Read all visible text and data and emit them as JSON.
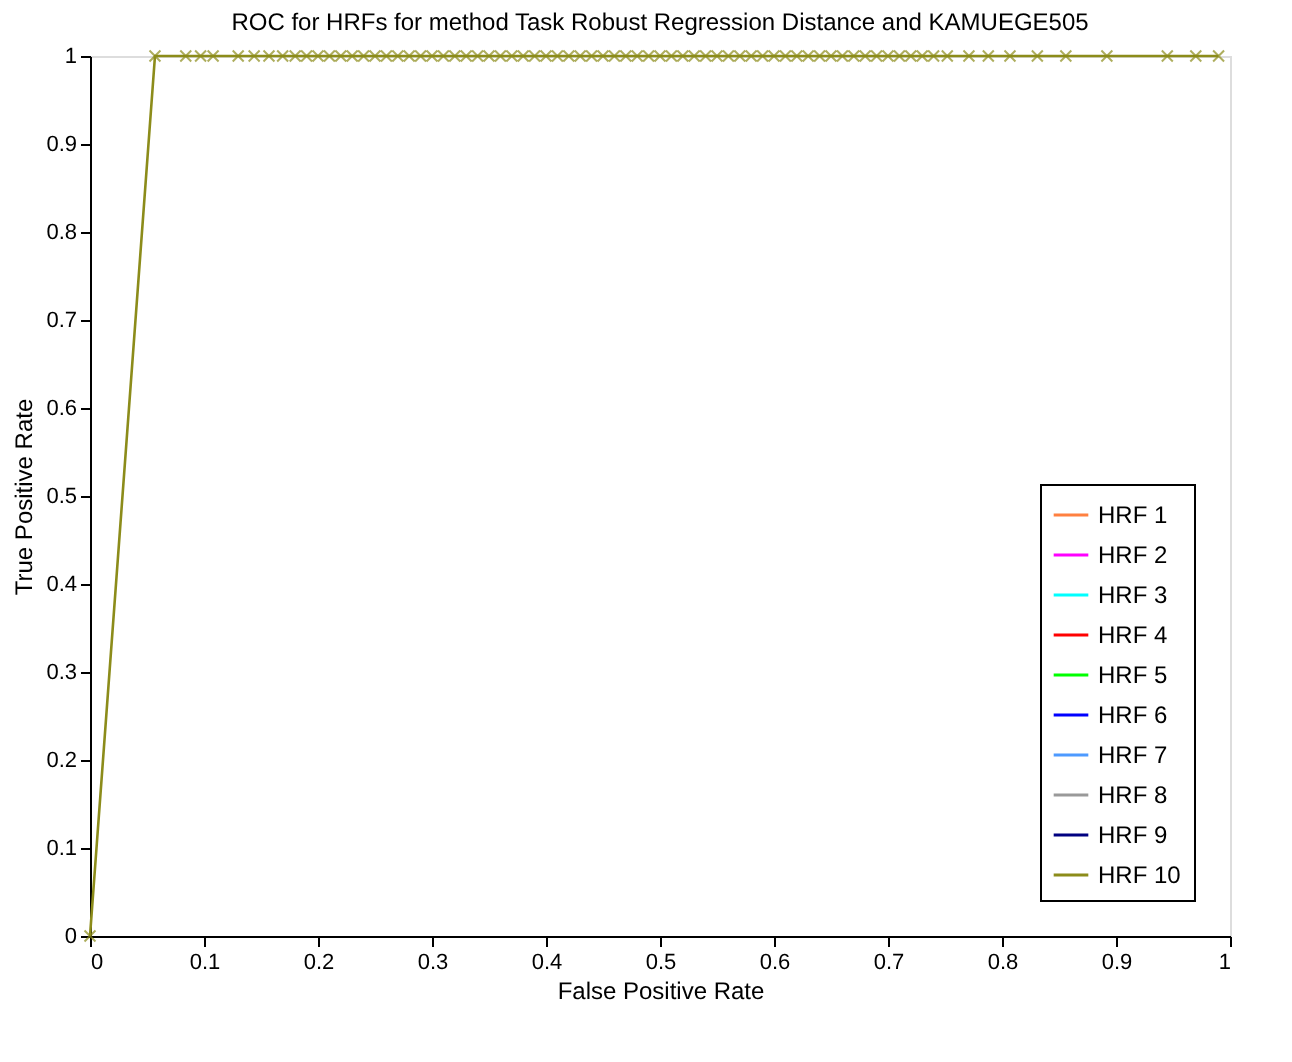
{
  "chart_data": {
    "type": "line",
    "title": "ROC for HRFs for method Task Robust Regression Distance and KAMUEGE505",
    "xlabel": "False Positive Rate",
    "ylabel": "True Positive Rate",
    "x": [
      0,
      0.057,
      0.084,
      0.097,
      0.108,
      0.13,
      0.144,
      0.157,
      0.169,
      0.18,
      0.19,
      0.2,
      0.21,
      0.22,
      0.23,
      0.24,
      0.25,
      0.26,
      0.27,
      0.28,
      0.29,
      0.3,
      0.31,
      0.32,
      0.33,
      0.34,
      0.35,
      0.36,
      0.37,
      0.38,
      0.39,
      0.4,
      0.41,
      0.42,
      0.43,
      0.44,
      0.45,
      0.46,
      0.47,
      0.48,
      0.49,
      0.5,
      0.51,
      0.52,
      0.53,
      0.54,
      0.55,
      0.56,
      0.57,
      0.58,
      0.59,
      0.6,
      0.61,
      0.62,
      0.63,
      0.64,
      0.65,
      0.66,
      0.67,
      0.68,
      0.69,
      0.7,
      0.71,
      0.72,
      0.73,
      0.74,
      0.752,
      0.771,
      0.788,
      0.807,
      0.831,
      0.856,
      0.892,
      0.945,
      0.97,
      0.99
    ],
    "series": [
      {
        "name": "HRF 1",
        "color": "#ff8040",
        "values": [
          null,
          null,
          null,
          null,
          null,
          null,
          null,
          null,
          null,
          null,
          null,
          null,
          null,
          null,
          null,
          null,
          null,
          null,
          null,
          null,
          null,
          null,
          null,
          null,
          null,
          null,
          null,
          null,
          null,
          null,
          null,
          null,
          null,
          null,
          null,
          null,
          null,
          null,
          null,
          null,
          null,
          null,
          null,
          null,
          null,
          null,
          null,
          null,
          null,
          null,
          null,
          null,
          null,
          null,
          null,
          null,
          null,
          null,
          null,
          null,
          null,
          null,
          null,
          null,
          null,
          null,
          null,
          null,
          null,
          null,
          null,
          null,
          null,
          null,
          null,
          null
        ]
      },
      {
        "name": "HRF 2",
        "color": "#ff00ff",
        "values": [
          null,
          null,
          null,
          null,
          null,
          null,
          null,
          null,
          null,
          null,
          null,
          null,
          null,
          null,
          null,
          null,
          null,
          null,
          null,
          null,
          null,
          null,
          null,
          null,
          null,
          null,
          null,
          null,
          null,
          null,
          null,
          null,
          null,
          null,
          null,
          null,
          null,
          null,
          null,
          null,
          null,
          null,
          null,
          null,
          null,
          null,
          null,
          null,
          null,
          null,
          null,
          null,
          null,
          null,
          null,
          null,
          null,
          null,
          null,
          null,
          null,
          null,
          null,
          null,
          null,
          null,
          null,
          null,
          null,
          null,
          null,
          null,
          null,
          null,
          null,
          null
        ]
      },
      {
        "name": "HRF 3",
        "color": "#00ffff",
        "values": [
          null,
          null,
          null,
          null,
          null,
          null,
          null,
          null,
          null,
          null,
          null,
          null,
          null,
          null,
          null,
          null,
          null,
          null,
          null,
          null,
          null,
          null,
          null,
          null,
          null,
          null,
          null,
          null,
          null,
          null,
          null,
          null,
          null,
          null,
          null,
          null,
          null,
          null,
          null,
          null,
          null,
          null,
          null,
          null,
          null,
          null,
          null,
          null,
          null,
          null,
          null,
          null,
          null,
          null,
          null,
          null,
          null,
          null,
          null,
          null,
          null,
          null,
          null,
          null,
          null,
          null,
          null,
          null,
          null,
          null,
          null,
          null,
          null,
          null,
          null,
          null
        ]
      },
      {
        "name": "HRF 4",
        "color": "#ff0000",
        "values": [
          null,
          null,
          null,
          null,
          null,
          null,
          null,
          null,
          null,
          null,
          null,
          null,
          null,
          null,
          null,
          null,
          null,
          null,
          null,
          null,
          null,
          null,
          null,
          null,
          null,
          null,
          null,
          null,
          null,
          null,
          null,
          null,
          null,
          null,
          null,
          null,
          null,
          null,
          null,
          null,
          null,
          null,
          null,
          null,
          null,
          null,
          null,
          null,
          null,
          null,
          null,
          null,
          null,
          null,
          null,
          null,
          null,
          null,
          null,
          null,
          null,
          null,
          null,
          null,
          null,
          null,
          null,
          null,
          null,
          null,
          null,
          null,
          null,
          null,
          null,
          null
        ]
      },
      {
        "name": "HRF 5",
        "color": "#00ff00",
        "values": [
          null,
          null,
          null,
          null,
          null,
          null,
          null,
          null,
          null,
          null,
          null,
          null,
          null,
          null,
          null,
          null,
          null,
          null,
          null,
          null,
          null,
          null,
          null,
          null,
          null,
          null,
          null,
          null,
          null,
          null,
          null,
          null,
          null,
          null,
          null,
          null,
          null,
          null,
          null,
          null,
          null,
          null,
          null,
          null,
          null,
          null,
          null,
          null,
          null,
          null,
          null,
          null,
          null,
          null,
          null,
          null,
          null,
          null,
          null,
          null,
          null,
          null,
          null,
          null,
          null,
          null,
          null,
          null,
          null,
          null,
          null,
          null,
          null,
          null,
          null,
          null
        ]
      },
      {
        "name": "HRF 6",
        "color": "#0000ff",
        "values": [
          null,
          null,
          null,
          null,
          null,
          null,
          null,
          null,
          null,
          null,
          null,
          null,
          null,
          null,
          null,
          null,
          null,
          null,
          null,
          null,
          null,
          null,
          null,
          null,
          null,
          null,
          null,
          null,
          null,
          null,
          null,
          null,
          null,
          null,
          null,
          null,
          null,
          null,
          null,
          null,
          null,
          null,
          null,
          null,
          null,
          null,
          null,
          null,
          null,
          null,
          null,
          null,
          null,
          null,
          null,
          null,
          null,
          null,
          null,
          null,
          null,
          null,
          null,
          null,
          null,
          null,
          null,
          null,
          null,
          null,
          null,
          null,
          null,
          null,
          null,
          null
        ]
      },
      {
        "name": "HRF 7",
        "color": "#4d9aff",
        "values": [
          null,
          null,
          null,
          null,
          null,
          null,
          null,
          null,
          null,
          null,
          null,
          null,
          null,
          null,
          null,
          null,
          null,
          null,
          null,
          null,
          null,
          null,
          null,
          null,
          null,
          null,
          null,
          null,
          null,
          null,
          null,
          null,
          null,
          null,
          null,
          null,
          null,
          null,
          null,
          null,
          null,
          null,
          null,
          null,
          null,
          null,
          null,
          null,
          null,
          null,
          null,
          null,
          null,
          null,
          null,
          null,
          null,
          null,
          null,
          null,
          null,
          null,
          null,
          null,
          null,
          null,
          null,
          null,
          null,
          null,
          null,
          null,
          null,
          null,
          null,
          null
        ]
      },
      {
        "name": "HRF 8",
        "color": "#999999",
        "values": [
          null,
          null,
          null,
          null,
          null,
          null,
          null,
          null,
          null,
          null,
          null,
          null,
          null,
          null,
          null,
          null,
          null,
          null,
          null,
          null,
          null,
          null,
          null,
          null,
          null,
          null,
          null,
          null,
          null,
          null,
          null,
          null,
          null,
          null,
          null,
          null,
          null,
          null,
          null,
          null,
          null,
          null,
          null,
          null,
          null,
          null,
          null,
          null,
          null,
          null,
          null,
          null,
          null,
          null,
          null,
          null,
          null,
          null,
          null,
          null,
          null,
          null,
          null,
          null,
          null,
          null,
          null,
          null,
          null,
          null,
          null,
          null,
          null,
          null,
          null,
          null
        ]
      },
      {
        "name": "HRF 9",
        "color": "#000080",
        "values": [
          null,
          null,
          null,
          null,
          null,
          null,
          null,
          null,
          null,
          null,
          null,
          null,
          null,
          null,
          null,
          null,
          null,
          null,
          null,
          null,
          null,
          null,
          null,
          null,
          null,
          null,
          null,
          null,
          null,
          null,
          null,
          null,
          null,
          null,
          null,
          null,
          null,
          null,
          null,
          null,
          null,
          null,
          null,
          null,
          null,
          null,
          null,
          null,
          null,
          null,
          null,
          null,
          null,
          null,
          null,
          null,
          null,
          null,
          null,
          null,
          null,
          null,
          null,
          null,
          null,
          null,
          null,
          null,
          null,
          null,
          null,
          null,
          null,
          null,
          null,
          null
        ]
      },
      {
        "name": "HRF 10",
        "color": "#8c8c1a",
        "values": [
          0,
          1,
          1,
          1,
          1,
          1,
          1,
          1,
          1,
          1,
          1,
          1,
          1,
          1,
          1,
          1,
          1,
          1,
          1,
          1,
          1,
          1,
          1,
          1,
          1,
          1,
          1,
          1,
          1,
          1,
          1,
          1,
          1,
          1,
          1,
          1,
          1,
          1,
          1,
          1,
          1,
          1,
          1,
          1,
          1,
          1,
          1,
          1,
          1,
          1,
          1,
          1,
          1,
          1,
          1,
          1,
          1,
          1,
          1,
          1,
          1,
          1,
          1,
          1,
          1,
          1,
          1,
          1,
          1,
          1,
          1,
          1,
          1,
          1,
          1,
          1
        ]
      }
    ],
    "xlim": [
      0,
      1
    ],
    "ylim": [
      0,
      1
    ],
    "xticks": [
      0,
      0.1,
      0.2,
      0.3,
      0.4,
      0.5,
      0.6,
      0.7,
      0.8,
      0.9,
      1
    ],
    "yticks": [
      0,
      0.1,
      0.2,
      0.3,
      0.4,
      0.5,
      0.6,
      0.7,
      0.8,
      0.9,
      1
    ],
    "grid": false,
    "legend": "bottom right",
    "marker": "cross",
    "line_style": "solid"
  }
}
